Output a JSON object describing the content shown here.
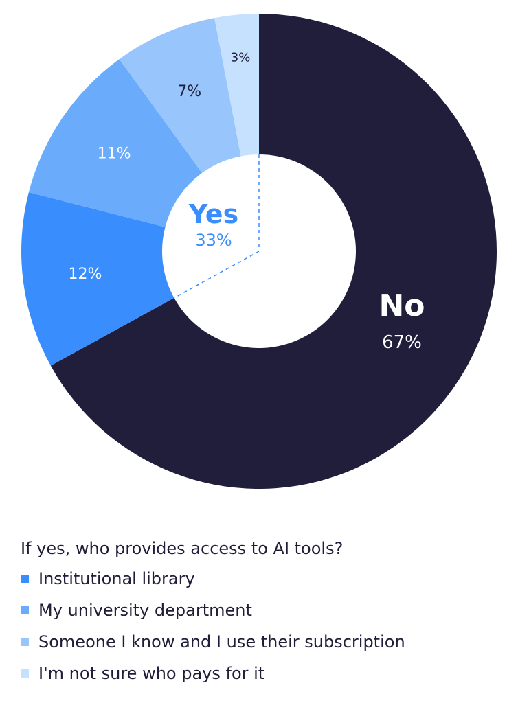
{
  "chart_data": {
    "type": "pie",
    "variant": "donut",
    "slices": [
      {
        "label": "No",
        "value": 67,
        "value_label": "67%",
        "color": "#211e3b"
      },
      {
        "label": "Institutional library",
        "value": 12,
        "value_label": "12%",
        "color": "#3a8dfd"
      },
      {
        "label": "My university department",
        "value": 11,
        "value_label": "11%",
        "color": "#6aacfb"
      },
      {
        "label": "Someone I know and I use their subscription",
        "value": 7,
        "value_label": "7%",
        "color": "#98c6fc"
      },
      {
        "label": "I'm not sure who pays for it",
        "value": 3,
        "value_label": "3%",
        "color": "#c6e1fe"
      }
    ],
    "group_labels": {
      "no": {
        "title": "No",
        "percent": "67%"
      },
      "yes": {
        "title": "Yes",
        "percent": "33%",
        "color": "#3a8dfd"
      }
    },
    "legend": {
      "title": "If yes, who provides access to AI tools?",
      "items": [
        {
          "label": "Institutional library",
          "color": "#3a8dfd"
        },
        {
          "label": "My university department",
          "color": "#6aacfb"
        },
        {
          "label": "Someone I know and I use their subscription",
          "color": "#98c6fc"
        },
        {
          "label": "I'm not sure who pays for it",
          "color": "#c6e1fe"
        }
      ]
    }
  }
}
